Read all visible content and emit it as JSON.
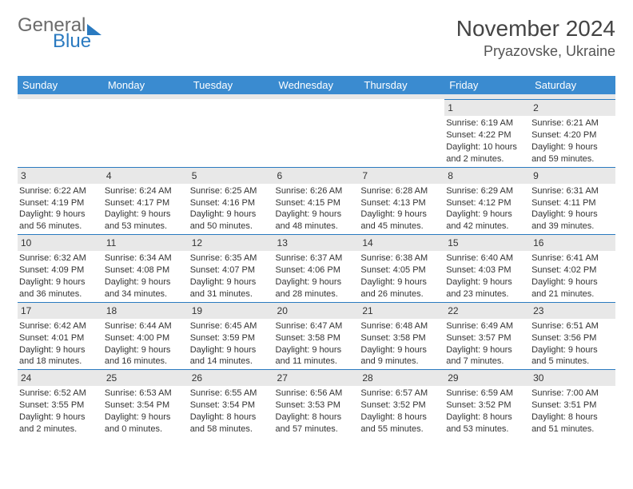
{
  "branding": {
    "general": "General",
    "blue": "Blue"
  },
  "header": {
    "month_year": "November 2024",
    "location": "Pryazovske, Ukraine"
  },
  "colors": {
    "accent": "#3a8bd0",
    "logo_gray": "#6b6b6b",
    "logo_blue": "#2a7ac0",
    "daynum_bg": "#e8e8e8",
    "border_top": "#2a7ac0",
    "text": "#333333",
    "background": "#ffffff"
  },
  "typography": {
    "month_year_fontsize": 28,
    "location_fontsize": 18,
    "dayheader_fontsize": 13,
    "cell_fontsize": 11
  },
  "calendar": {
    "day_headers": [
      "Sunday",
      "Monday",
      "Tuesday",
      "Wednesday",
      "Thursday",
      "Friday",
      "Saturday"
    ],
    "weeks": [
      [
        null,
        null,
        null,
        null,
        null,
        {
          "n": "1",
          "sunrise": "Sunrise: 6:19 AM",
          "sunset": "Sunset: 4:22 PM",
          "day1": "Daylight: 10 hours",
          "day2": "and 2 minutes."
        },
        {
          "n": "2",
          "sunrise": "Sunrise: 6:21 AM",
          "sunset": "Sunset: 4:20 PM",
          "day1": "Daylight: 9 hours",
          "day2": "and 59 minutes."
        }
      ],
      [
        {
          "n": "3",
          "sunrise": "Sunrise: 6:22 AM",
          "sunset": "Sunset: 4:19 PM",
          "day1": "Daylight: 9 hours",
          "day2": "and 56 minutes."
        },
        {
          "n": "4",
          "sunrise": "Sunrise: 6:24 AM",
          "sunset": "Sunset: 4:17 PM",
          "day1": "Daylight: 9 hours",
          "day2": "and 53 minutes."
        },
        {
          "n": "5",
          "sunrise": "Sunrise: 6:25 AM",
          "sunset": "Sunset: 4:16 PM",
          "day1": "Daylight: 9 hours",
          "day2": "and 50 minutes."
        },
        {
          "n": "6",
          "sunrise": "Sunrise: 6:26 AM",
          "sunset": "Sunset: 4:15 PM",
          "day1": "Daylight: 9 hours",
          "day2": "and 48 minutes."
        },
        {
          "n": "7",
          "sunrise": "Sunrise: 6:28 AM",
          "sunset": "Sunset: 4:13 PM",
          "day1": "Daylight: 9 hours",
          "day2": "and 45 minutes."
        },
        {
          "n": "8",
          "sunrise": "Sunrise: 6:29 AM",
          "sunset": "Sunset: 4:12 PM",
          "day1": "Daylight: 9 hours",
          "day2": "and 42 minutes."
        },
        {
          "n": "9",
          "sunrise": "Sunrise: 6:31 AM",
          "sunset": "Sunset: 4:11 PM",
          "day1": "Daylight: 9 hours",
          "day2": "and 39 minutes."
        }
      ],
      [
        {
          "n": "10",
          "sunrise": "Sunrise: 6:32 AM",
          "sunset": "Sunset: 4:09 PM",
          "day1": "Daylight: 9 hours",
          "day2": "and 36 minutes."
        },
        {
          "n": "11",
          "sunrise": "Sunrise: 6:34 AM",
          "sunset": "Sunset: 4:08 PM",
          "day1": "Daylight: 9 hours",
          "day2": "and 34 minutes."
        },
        {
          "n": "12",
          "sunrise": "Sunrise: 6:35 AM",
          "sunset": "Sunset: 4:07 PM",
          "day1": "Daylight: 9 hours",
          "day2": "and 31 minutes."
        },
        {
          "n": "13",
          "sunrise": "Sunrise: 6:37 AM",
          "sunset": "Sunset: 4:06 PM",
          "day1": "Daylight: 9 hours",
          "day2": "and 28 minutes."
        },
        {
          "n": "14",
          "sunrise": "Sunrise: 6:38 AM",
          "sunset": "Sunset: 4:05 PM",
          "day1": "Daylight: 9 hours",
          "day2": "and 26 minutes."
        },
        {
          "n": "15",
          "sunrise": "Sunrise: 6:40 AM",
          "sunset": "Sunset: 4:03 PM",
          "day1": "Daylight: 9 hours",
          "day2": "and 23 minutes."
        },
        {
          "n": "16",
          "sunrise": "Sunrise: 6:41 AM",
          "sunset": "Sunset: 4:02 PM",
          "day1": "Daylight: 9 hours",
          "day2": "and 21 minutes."
        }
      ],
      [
        {
          "n": "17",
          "sunrise": "Sunrise: 6:42 AM",
          "sunset": "Sunset: 4:01 PM",
          "day1": "Daylight: 9 hours",
          "day2": "and 18 minutes."
        },
        {
          "n": "18",
          "sunrise": "Sunrise: 6:44 AM",
          "sunset": "Sunset: 4:00 PM",
          "day1": "Daylight: 9 hours",
          "day2": "and 16 minutes."
        },
        {
          "n": "19",
          "sunrise": "Sunrise: 6:45 AM",
          "sunset": "Sunset: 3:59 PM",
          "day1": "Daylight: 9 hours",
          "day2": "and 14 minutes."
        },
        {
          "n": "20",
          "sunrise": "Sunrise: 6:47 AM",
          "sunset": "Sunset: 3:58 PM",
          "day1": "Daylight: 9 hours",
          "day2": "and 11 minutes."
        },
        {
          "n": "21",
          "sunrise": "Sunrise: 6:48 AM",
          "sunset": "Sunset: 3:58 PM",
          "day1": "Daylight: 9 hours",
          "day2": "and 9 minutes."
        },
        {
          "n": "22",
          "sunrise": "Sunrise: 6:49 AM",
          "sunset": "Sunset: 3:57 PM",
          "day1": "Daylight: 9 hours",
          "day2": "and 7 minutes."
        },
        {
          "n": "23",
          "sunrise": "Sunrise: 6:51 AM",
          "sunset": "Sunset: 3:56 PM",
          "day1": "Daylight: 9 hours",
          "day2": "and 5 minutes."
        }
      ],
      [
        {
          "n": "24",
          "sunrise": "Sunrise: 6:52 AM",
          "sunset": "Sunset: 3:55 PM",
          "day1": "Daylight: 9 hours",
          "day2": "and 2 minutes."
        },
        {
          "n": "25",
          "sunrise": "Sunrise: 6:53 AM",
          "sunset": "Sunset: 3:54 PM",
          "day1": "Daylight: 9 hours",
          "day2": "and 0 minutes."
        },
        {
          "n": "26",
          "sunrise": "Sunrise: 6:55 AM",
          "sunset": "Sunset: 3:54 PM",
          "day1": "Daylight: 8 hours",
          "day2": "and 58 minutes."
        },
        {
          "n": "27",
          "sunrise": "Sunrise: 6:56 AM",
          "sunset": "Sunset: 3:53 PM",
          "day1": "Daylight: 8 hours",
          "day2": "and 57 minutes."
        },
        {
          "n": "28",
          "sunrise": "Sunrise: 6:57 AM",
          "sunset": "Sunset: 3:52 PM",
          "day1": "Daylight: 8 hours",
          "day2": "and 55 minutes."
        },
        {
          "n": "29",
          "sunrise": "Sunrise: 6:59 AM",
          "sunset": "Sunset: 3:52 PM",
          "day1": "Daylight: 8 hours",
          "day2": "and 53 minutes."
        },
        {
          "n": "30",
          "sunrise": "Sunrise: 7:00 AM",
          "sunset": "Sunset: 3:51 PM",
          "day1": "Daylight: 8 hours",
          "day2": "and 51 minutes."
        }
      ]
    ]
  }
}
